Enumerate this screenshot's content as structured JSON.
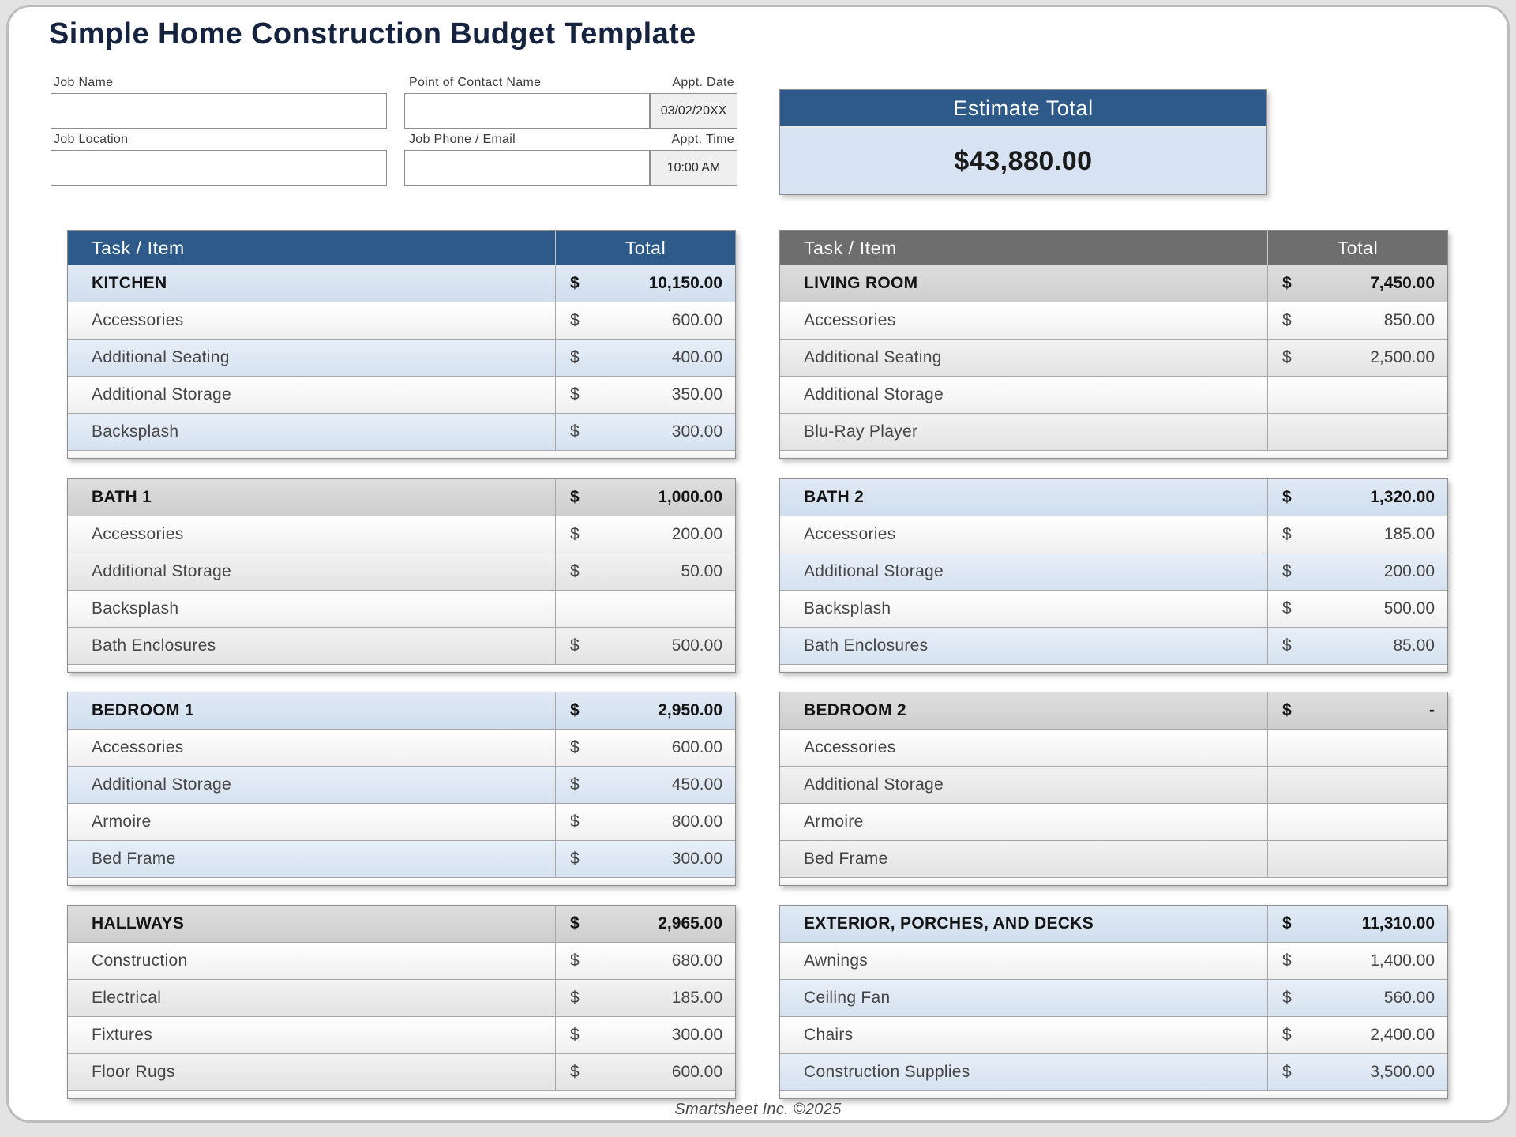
{
  "title": "Simple Home Construction Budget Template",
  "form": {
    "job_name": {
      "label": "Job Name",
      "value": ""
    },
    "job_location": {
      "label": "Job Location",
      "value": ""
    },
    "contact_name": {
      "label": "Point of Contact Name",
      "value": ""
    },
    "job_phone_email": {
      "label": "Job Phone / Email",
      "value": ""
    },
    "appt_date": {
      "label": "Appt. Date",
      "value": "03/02/20XX"
    },
    "appt_time": {
      "label": "Appt. Time",
      "value": "10:00 AM"
    }
  },
  "estimate": {
    "label": "Estimate Total",
    "value": "$43,880.00"
  },
  "table_header": {
    "task": "Task / Item",
    "total": "Total"
  },
  "tables": [
    {
      "name": "KITCHEN",
      "theme": "blue",
      "has_column_header": true,
      "total": {
        "currency": "$",
        "amount": "10,150.00"
      },
      "rows": [
        {
          "label": "Accessories",
          "currency": "$",
          "amount": "600.00"
        },
        {
          "label": "Additional Seating",
          "currency": "$",
          "amount": "400.00"
        },
        {
          "label": "Additional Storage",
          "currency": "$",
          "amount": "350.00"
        },
        {
          "label": "Backsplash",
          "currency": "$",
          "amount": "300.00"
        }
      ]
    },
    {
      "name": "LIVING ROOM",
      "theme": "gray",
      "has_column_header": true,
      "total": {
        "currency": "$",
        "amount": "7,450.00"
      },
      "rows": [
        {
          "label": "Accessories",
          "currency": "$",
          "amount": "850.00"
        },
        {
          "label": "Additional Seating",
          "currency": "$",
          "amount": "2,500.00"
        },
        {
          "label": "Additional Storage",
          "currency": "",
          "amount": ""
        },
        {
          "label": "Blu-Ray Player",
          "currency": "",
          "amount": ""
        }
      ]
    },
    {
      "name": "BATH 1",
      "theme": "gray",
      "has_column_header": false,
      "total": {
        "currency": "$",
        "amount": "1,000.00"
      },
      "rows": [
        {
          "label": "Accessories",
          "currency": "$",
          "amount": "200.00"
        },
        {
          "label": "Additional Storage",
          "currency": "$",
          "amount": "50.00"
        },
        {
          "label": "Backsplash",
          "currency": "",
          "amount": ""
        },
        {
          "label": "Bath Enclosures",
          "currency": "$",
          "amount": "500.00"
        }
      ]
    },
    {
      "name": "BATH 2",
      "theme": "blue",
      "has_column_header": false,
      "total": {
        "currency": "$",
        "amount": "1,320.00"
      },
      "rows": [
        {
          "label": "Accessories",
          "currency": "$",
          "amount": "185.00"
        },
        {
          "label": "Additional Storage",
          "currency": "$",
          "amount": "200.00"
        },
        {
          "label": "Backsplash",
          "currency": "$",
          "amount": "500.00"
        },
        {
          "label": "Bath Enclosures",
          "currency": "$",
          "amount": "85.00"
        }
      ]
    },
    {
      "name": "BEDROOM 1",
      "theme": "blue",
      "has_column_header": false,
      "total": {
        "currency": "$",
        "amount": "2,950.00"
      },
      "rows": [
        {
          "label": "Accessories",
          "currency": "$",
          "amount": "600.00"
        },
        {
          "label": "Additional Storage",
          "currency": "$",
          "amount": "450.00"
        },
        {
          "label": "Armoire",
          "currency": "$",
          "amount": "800.00"
        },
        {
          "label": "Bed Frame",
          "currency": "$",
          "amount": "300.00"
        }
      ]
    },
    {
      "name": "BEDROOM 2",
      "theme": "gray",
      "has_column_header": false,
      "total": {
        "currency": "$",
        "amount": "-"
      },
      "rows": [
        {
          "label": "Accessories",
          "currency": "",
          "amount": ""
        },
        {
          "label": "Additional Storage",
          "currency": "",
          "amount": ""
        },
        {
          "label": "Armoire",
          "currency": "",
          "amount": ""
        },
        {
          "label": "Bed Frame",
          "currency": "",
          "amount": ""
        }
      ]
    },
    {
      "name": "HALLWAYS",
      "theme": "gray",
      "has_column_header": false,
      "total": {
        "currency": "$",
        "amount": "2,965.00"
      },
      "rows": [
        {
          "label": "Construction",
          "currency": "$",
          "amount": "680.00"
        },
        {
          "label": "Electrical",
          "currency": "$",
          "amount": "185.00"
        },
        {
          "label": "Fixtures",
          "currency": "$",
          "amount": "300.00"
        },
        {
          "label": "Floor Rugs",
          "currency": "$",
          "amount": "600.00"
        }
      ]
    },
    {
      "name": "EXTERIOR, PORCHES, AND DECKS",
      "theme": "blue",
      "has_column_header": false,
      "total": {
        "currency": "$",
        "amount": "11,310.00"
      },
      "rows": [
        {
          "label": "Awnings",
          "currency": "$",
          "amount": "1,400.00"
        },
        {
          "label": "Ceiling Fan",
          "currency": "$",
          "amount": "560.00"
        },
        {
          "label": "Chairs",
          "currency": "$",
          "amount": "2,400.00"
        },
        {
          "label": "Construction Supplies",
          "currency": "$",
          "amount": "3,500.00"
        }
      ]
    }
  ],
  "footer": "Smartsheet Inc. ©2025",
  "colors": {
    "title_navy": "#16233f",
    "header_blue": "#2d5a88",
    "header_gray": "#6e6e6e",
    "row_blue": "#d9e4f1",
    "row_gray": "#ededed",
    "section_gray": "#d6d6d6",
    "estimate_body": "#d7e3f2"
  }
}
